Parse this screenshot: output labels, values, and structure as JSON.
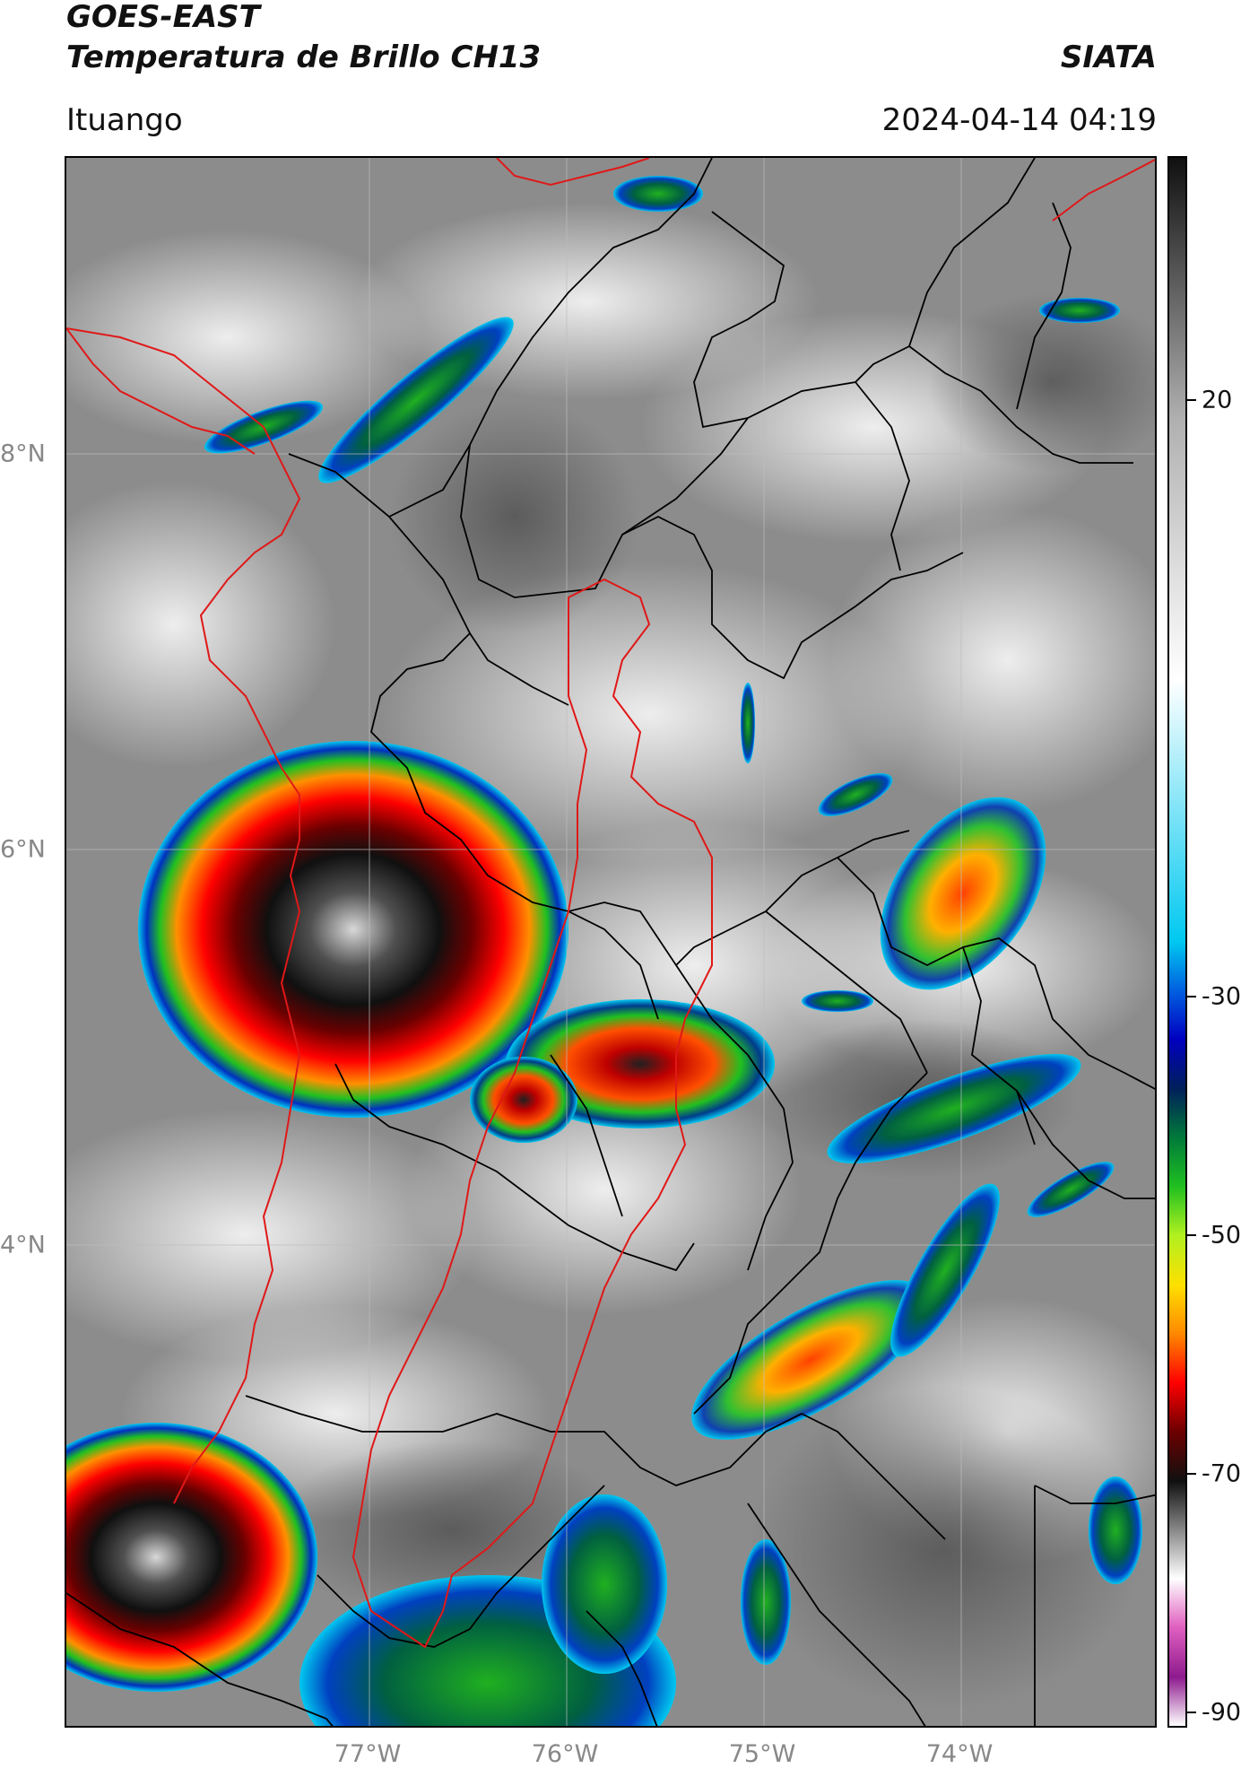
{
  "header": {
    "satellite": "GOES-EAST",
    "product": "Temperatura de Brillo CH13",
    "organization": "SIATA",
    "location": "Ituango",
    "datetime": "2024-04-14 04:19"
  },
  "map": {
    "lat_labels": [
      "8°N",
      "6°N",
      "4°N"
    ],
    "lon_labels": [
      "77°W",
      "76°W",
      "75°W",
      "74°W"
    ],
    "colors": {
      "background_gray": "#8a8a8a",
      "state_border": "#000000",
      "region_border": "#e01010"
    }
  },
  "colorbar": {
    "ticks": [
      "20",
      "-30",
      "-50",
      "-70",
      "-90"
    ],
    "stops": [
      "#ffffff",
      "#8e1a8e",
      "#e060c0",
      "#ffffff",
      "#888888",
      "#101010",
      "#6e0000",
      "#ff0000",
      "#ff8800",
      "#ffe000",
      "#b0f020",
      "#20c020",
      "#007a3a",
      "#00205a",
      "#0000c0",
      "#0060e0",
      "#00c8f0",
      "#ffffff",
      "#b0b0b0",
      "#101010"
    ]
  }
}
